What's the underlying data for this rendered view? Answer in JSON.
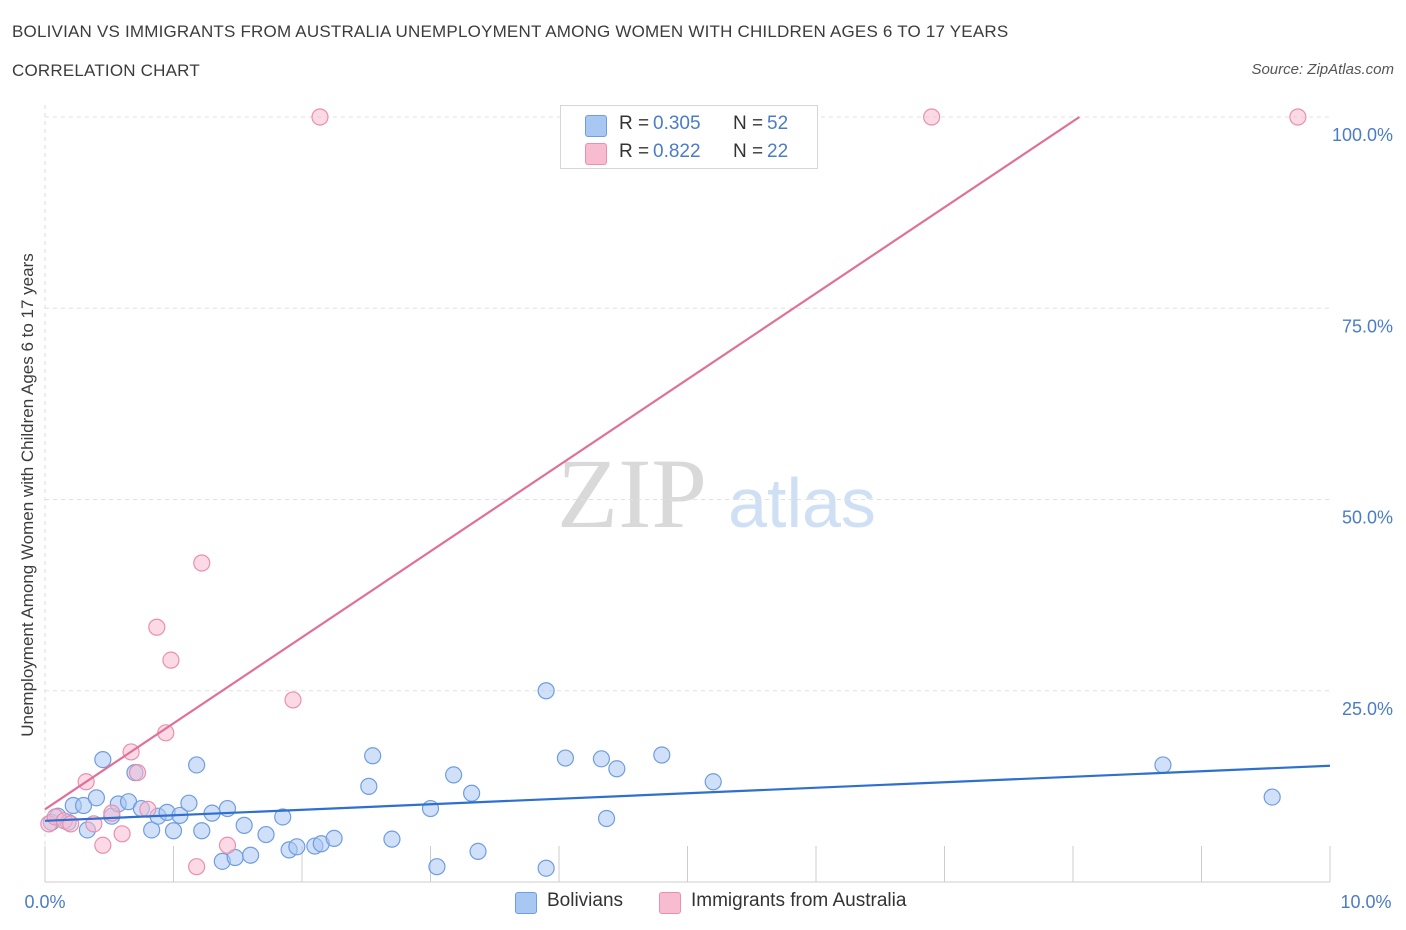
{
  "title": "BOLIVIAN VS IMMIGRANTS FROM AUSTRALIA UNEMPLOYMENT AMONG WOMEN WITH CHILDREN AGES 6 TO 17 YEARS",
  "subtitle": "CORRELATION CHART",
  "source": "Source: ZipAtlas.com",
  "watermark": {
    "zip": "ZIP",
    "atlas": "atlas"
  },
  "colors": {
    "blue_fill": "#a9c7f3",
    "blue_stroke": "#6f9de0",
    "blue_line": "#2f6fd0",
    "pink_fill": "#f7bcd0",
    "pink_stroke": "#ea8fae",
    "pink_line": "#e07098",
    "tick_text": "#4a7cc8",
    "grid": "#e0e0e0"
  },
  "legend_top": [
    {
      "r_label": "R =",
      "r_value": "0.305",
      "n_label": "N =",
      "n_value": "52",
      "color": "#a9c7f3",
      "border": "#6f9de0"
    },
    {
      "r_label": "R =",
      "r_value": "0.822",
      "n_label": "N =",
      "n_value": "22",
      "color": "#f7bcd0",
      "border": "#ea8fae"
    }
  ],
  "legend_bottom": [
    {
      "label": "Bolivians",
      "color": "#a9c7f3",
      "border": "#6f9de0"
    },
    {
      "label": "Immigrants from Australia",
      "color": "#f7bcd0",
      "border": "#ea8fae"
    }
  ],
  "chart_data": {
    "type": "scatter",
    "title": "BOLIVIAN VS IMMIGRANTS FROM AUSTRALIA UNEMPLOYMENT AMONG WOMEN WITH CHILDREN AGES 6 TO 17 YEARS",
    "xlabel": "",
    "ylabel": "Unemployment Among Women with Children Ages 6 to 17 years",
    "xlim": [
      0,
      10
    ],
    "ylim": [
      0,
      100
    ],
    "x_tick_labels": [
      "0.0%",
      "10.0%"
    ],
    "y_ticks": [
      25,
      50,
      75,
      100
    ],
    "y_tick_labels": [
      "25.0%",
      "50.0%",
      "75.0%",
      "100.0%"
    ],
    "grid": true,
    "legend_position": "top-center",
    "series": [
      {
        "name": "Bolivians",
        "r": 0.305,
        "n": 52,
        "trend": {
          "x": [
            0,
            10
          ],
          "y": [
            8.0,
            15.2
          ]
        },
        "points": [
          {
            "x": 0.05,
            "y": 7.8
          },
          {
            "x": 0.1,
            "y": 8.6
          },
          {
            "x": 0.18,
            "y": 7.8
          },
          {
            "x": 0.22,
            "y": 10.0
          },
          {
            "x": 0.3,
            "y": 10.0
          },
          {
            "x": 0.33,
            "y": 6.8
          },
          {
            "x": 0.4,
            "y": 11.0
          },
          {
            "x": 0.45,
            "y": 16.0
          },
          {
            "x": 0.52,
            "y": 8.6
          },
          {
            "x": 0.57,
            "y": 10.2
          },
          {
            "x": 0.65,
            "y": 10.5
          },
          {
            "x": 0.7,
            "y": 14.3
          },
          {
            "x": 0.75,
            "y": 9.6
          },
          {
            "x": 0.83,
            "y": 6.8
          },
          {
            "x": 0.88,
            "y": 8.6
          },
          {
            "x": 0.95,
            "y": 9.1
          },
          {
            "x": 1.0,
            "y": 6.7
          },
          {
            "x": 1.05,
            "y": 8.7
          },
          {
            "x": 1.12,
            "y": 10.3
          },
          {
            "x": 1.18,
            "y": 15.3
          },
          {
            "x": 1.22,
            "y": 6.7
          },
          {
            "x": 1.3,
            "y": 9.0
          },
          {
            "x": 1.38,
            "y": 2.7
          },
          {
            "x": 1.42,
            "y": 9.6
          },
          {
            "x": 1.48,
            "y": 3.2
          },
          {
            "x": 1.55,
            "y": 7.4
          },
          {
            "x": 1.6,
            "y": 3.5
          },
          {
            "x": 1.72,
            "y": 6.2
          },
          {
            "x": 1.85,
            "y": 8.5
          },
          {
            "x": 1.9,
            "y": 4.2
          },
          {
            "x": 1.96,
            "y": 4.6
          },
          {
            "x": 2.1,
            "y": 4.7
          },
          {
            "x": 2.15,
            "y": 5.0
          },
          {
            "x": 2.25,
            "y": 5.7
          },
          {
            "x": 2.52,
            "y": 12.5
          },
          {
            "x": 2.55,
            "y": 16.5
          },
          {
            "x": 2.7,
            "y": 5.6
          },
          {
            "x": 3.0,
            "y": 9.6
          },
          {
            "x": 3.05,
            "y": 2.0
          },
          {
            "x": 3.18,
            "y": 14.0
          },
          {
            "x": 3.32,
            "y": 11.6
          },
          {
            "x": 3.37,
            "y": 4.0
          },
          {
            "x": 3.9,
            "y": 25.0
          },
          {
            "x": 3.9,
            "y": 1.8
          },
          {
            "x": 4.05,
            "y": 16.2
          },
          {
            "x": 4.33,
            "y": 16.1
          },
          {
            "x": 4.37,
            "y": 8.3
          },
          {
            "x": 4.45,
            "y": 14.8
          },
          {
            "x": 4.8,
            "y": 16.6
          },
          {
            "x": 5.2,
            "y": 13.1
          },
          {
            "x": 8.7,
            "y": 15.3
          },
          {
            "x": 9.55,
            "y": 11.1
          }
        ]
      },
      {
        "name": "Immigrants from Australia",
        "r": 0.822,
        "n": 22,
        "trend": {
          "x": [
            0,
            8.05
          ],
          "y": [
            9.5,
            100
          ]
        },
        "points": [
          {
            "x": 0.03,
            "y": 7.6
          },
          {
            "x": 0.08,
            "y": 8.5
          },
          {
            "x": 0.15,
            "y": 8.0
          },
          {
            "x": 0.2,
            "y": 7.6
          },
          {
            "x": 0.32,
            "y": 13.1
          },
          {
            "x": 0.38,
            "y": 7.6
          },
          {
            "x": 0.45,
            "y": 4.8
          },
          {
            "x": 0.52,
            "y": 9.0
          },
          {
            "x": 0.6,
            "y": 6.3
          },
          {
            "x": 0.67,
            "y": 17.0
          },
          {
            "x": 0.72,
            "y": 14.3
          },
          {
            "x": 0.8,
            "y": 9.5
          },
          {
            "x": 0.87,
            "y": 33.3
          },
          {
            "x": 0.94,
            "y": 19.5
          },
          {
            "x": 0.98,
            "y": 29.0
          },
          {
            "x": 1.18,
            "y": 2.0
          },
          {
            "x": 1.22,
            "y": 41.7
          },
          {
            "x": 1.42,
            "y": 4.8
          },
          {
            "x": 1.93,
            "y": 23.8
          },
          {
            "x": 2.14,
            "y": 100.0
          },
          {
            "x": 6.9,
            "y": 100.0
          },
          {
            "x": 9.75,
            "y": 100.0
          }
        ]
      }
    ]
  }
}
